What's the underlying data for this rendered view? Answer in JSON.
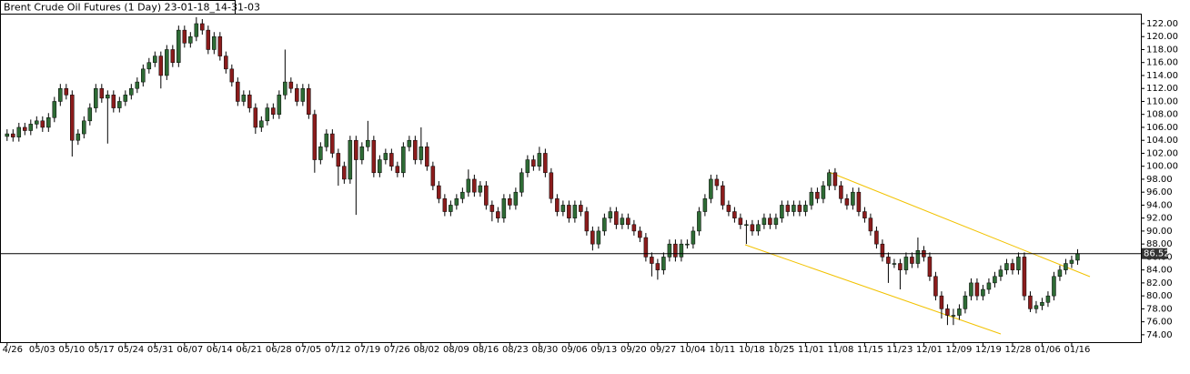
{
  "chart_data": {
    "type": "candlestick",
    "title": "Brent Crude Oil Futures (1 Day) 23-01-18_14-31-03",
    "bull_color": "#2e6b35",
    "bear_color": "#8b1c1c",
    "last_price": 86.52,
    "xlim": [
      -1.2,
      191.7
    ],
    "ylim": [
      73,
      123.5
    ],
    "yticks": [
      {
        "value": 74,
        "label": "74.00"
      },
      {
        "value": 76,
        "label": "76.00"
      },
      {
        "value": 78,
        "label": "78.00"
      },
      {
        "value": 80,
        "label": "80.00"
      },
      {
        "value": 82,
        "label": "82.00"
      },
      {
        "value": 84,
        "label": "84.00"
      },
      {
        "value": 86,
        "label": "86.00"
      },
      {
        "value": 88,
        "label": "88.00"
      },
      {
        "value": 90,
        "label": "90.00"
      },
      {
        "value": 92,
        "label": "92.00"
      },
      {
        "value": 94,
        "label": "94.00"
      },
      {
        "value": 96,
        "label": "96.00"
      },
      {
        "value": 98,
        "label": "98.00"
      },
      {
        "value": 100,
        "label": "100.00"
      },
      {
        "value": 102,
        "label": "102.00"
      },
      {
        "value": 104,
        "label": "104.00"
      },
      {
        "value": 106,
        "label": "106.00"
      },
      {
        "value": 108,
        "label": "108.00"
      },
      {
        "value": 110,
        "label": "110.00"
      },
      {
        "value": 112,
        "label": "112.00"
      },
      {
        "value": 114,
        "label": "114.00"
      },
      {
        "value": 116,
        "label": "116.00"
      },
      {
        "value": 118,
        "label": "118.00"
      },
      {
        "value": 120,
        "label": "120.00"
      },
      {
        "value": 122,
        "label": "122.00"
      }
    ],
    "xticks": [
      {
        "value": 0,
        "label": "4/26"
      },
      {
        "value": 5,
        "label": "05/03"
      },
      {
        "value": 10,
        "label": "05/10"
      },
      {
        "value": 15,
        "label": "05/17"
      },
      {
        "value": 20,
        "label": "05/24"
      },
      {
        "value": 25,
        "label": "05/31"
      },
      {
        "value": 30,
        "label": "06/07"
      },
      {
        "value": 35,
        "label": "06/14"
      },
      {
        "value": 40,
        "label": "06/21"
      },
      {
        "value": 45,
        "label": "06/28"
      },
      {
        "value": 50,
        "label": "07/05"
      },
      {
        "value": 55,
        "label": "07/12"
      },
      {
        "value": 60,
        "label": "07/19"
      },
      {
        "value": 65,
        "label": "07/26"
      },
      {
        "value": 70,
        "label": "08/02"
      },
      {
        "value": 75,
        "label": "08/09"
      },
      {
        "value": 80,
        "label": "08/16"
      },
      {
        "value": 85,
        "label": "08/23"
      },
      {
        "value": 90,
        "label": "08/30"
      },
      {
        "value": 95,
        "label": "09/06"
      },
      {
        "value": 100,
        "label": "09/13"
      },
      {
        "value": 105,
        "label": "09/20"
      },
      {
        "value": 110,
        "label": "09/27"
      },
      {
        "value": 115,
        "label": "10/04"
      },
      {
        "value": 120,
        "label": "10/11"
      },
      {
        "value": 125,
        "label": "10/18"
      },
      {
        "value": 130,
        "label": "10/25"
      },
      {
        "value": 135,
        "label": "11/01"
      },
      {
        "value": 140,
        "label": "11/08"
      },
      {
        "value": 145,
        "label": "11/15"
      },
      {
        "value": 150,
        "label": "11/23"
      },
      {
        "value": 155,
        "label": "12/01"
      },
      {
        "value": 160,
        "label": "12/09"
      },
      {
        "value": 165,
        "label": "12/19"
      },
      {
        "value": 170,
        "label": "12/28"
      },
      {
        "value": 175,
        "label": "01/06"
      },
      {
        "value": 180,
        "label": "01/16"
      }
    ],
    "ohlc": [
      [
        104.6,
        105.7,
        103.9,
        105
      ],
      [
        105,
        105.7,
        103.8,
        104.5
      ],
      [
        104.5,
        106.7,
        103.8,
        106
      ],
      [
        106,
        106.7,
        104.8,
        105.5
      ],
      [
        105.5,
        107.2,
        104.8,
        106.5
      ],
      [
        106.5,
        107.7,
        105.8,
        107
      ],
      [
        107,
        107.7,
        105.3,
        106
      ],
      [
        106,
        108.2,
        105.3,
        107.5
      ],
      [
        107.5,
        110.7,
        106.8,
        110
      ],
      [
        110,
        112.7,
        109.3,
        112
      ],
      [
        112,
        112.7,
        110.3,
        111
      ],
      [
        111,
        111.7,
        101.5,
        104
      ],
      [
        104,
        105.7,
        103.3,
        105
      ],
      [
        105,
        107.7,
        104.3,
        107
      ],
      [
        107,
        109.7,
        106.3,
        109
      ],
      [
        109,
        112.7,
        108.3,
        112
      ],
      [
        112,
        112.7,
        109.8,
        110.5
      ],
      [
        110.5,
        111.7,
        103.5,
        111
      ],
      [
        111,
        111.7,
        108.3,
        109
      ],
      [
        109,
        110.7,
        108.3,
        110
      ],
      [
        110,
        111.7,
        109.3,
        111
      ],
      [
        111,
        112.7,
        110.3,
        112
      ],
      [
        112,
        113.7,
        111.3,
        113
      ],
      [
        113,
        115.7,
        112.3,
        115
      ],
      [
        115,
        116.7,
        114.3,
        116
      ],
      [
        116,
        117.7,
        115.3,
        117
      ],
      [
        117,
        117.7,
        112,
        114
      ],
      [
        114,
        118.7,
        113.3,
        118
      ],
      [
        118,
        118.7,
        115.3,
        116
      ],
      [
        116,
        121.7,
        115.3,
        121
      ],
      [
        121,
        121.7,
        118.3,
        119
      ],
      [
        119,
        120.7,
        118.3,
        120
      ],
      [
        120,
        123,
        119.3,
        122
      ],
      [
        122,
        122.7,
        120.3,
        121
      ],
      [
        121,
        121.7,
        117.3,
        118
      ],
      [
        118,
        120.7,
        117.3,
        120
      ],
      [
        120,
        120.7,
        116.3,
        117
      ],
      [
        117,
        117.7,
        114.3,
        115
      ],
      [
        115,
        115.7,
        112.3,
        113
      ],
      [
        113,
        113.7,
        109.3,
        110
      ],
      [
        110,
        111.7,
        109.3,
        111
      ],
      [
        111,
        111.7,
        108.3,
        109
      ],
      [
        109,
        109.7,
        105,
        106
      ],
      [
        106,
        107.7,
        105.3,
        107
      ],
      [
        107,
        109.7,
        106.3,
        109
      ],
      [
        109,
        109.7,
        107.3,
        108
      ],
      [
        108,
        111.7,
        107.3,
        111
      ],
      [
        111,
        118,
        110.3,
        113
      ],
      [
        113,
        113.7,
        111.3,
        112
      ],
      [
        112,
        112.7,
        109.3,
        110
      ],
      [
        110,
        112.7,
        109.3,
        112
      ],
      [
        112,
        112.7,
        107.3,
        108
      ],
      [
        108,
        108.7,
        99,
        101
      ],
      [
        101,
        103.7,
        100.3,
        103
      ],
      [
        103,
        105.7,
        102.3,
        105
      ],
      [
        105,
        105.7,
        101.3,
        102
      ],
      [
        102,
        102.7,
        97,
        100
      ],
      [
        100,
        100.7,
        97.3,
        98
      ],
      [
        98,
        104.7,
        97.3,
        104
      ],
      [
        104,
        104.7,
        92.5,
        101
      ],
      [
        101,
        103.7,
        100.3,
        103
      ],
      [
        103,
        107,
        102.3,
        104
      ],
      [
        104,
        104.7,
        98.3,
        99
      ],
      [
        99,
        101.7,
        98.3,
        101
      ],
      [
        101,
        102.7,
        100.3,
        102
      ],
      [
        102,
        102.7,
        99.3,
        100
      ],
      [
        100,
        100.7,
        98.3,
        99
      ],
      [
        99,
        103.7,
        98.3,
        103
      ],
      [
        103,
        104.7,
        102.3,
        104
      ],
      [
        104,
        104.7,
        100.3,
        101
      ],
      [
        101,
        106,
        100.3,
        103
      ],
      [
        103,
        103.7,
        99.3,
        100
      ],
      [
        100,
        100.7,
        96.3,
        97
      ],
      [
        97,
        97.7,
        94.3,
        95
      ],
      [
        95,
        95.7,
        92.3,
        93
      ],
      [
        93,
        94.7,
        92.3,
        94
      ],
      [
        94,
        95.7,
        93.3,
        95
      ],
      [
        95,
        96.7,
        94.3,
        96
      ],
      [
        96,
        99.5,
        95.3,
        98
      ],
      [
        98,
        98.7,
        95.3,
        96
      ],
      [
        96,
        97.7,
        95.3,
        97
      ],
      [
        97,
        97.7,
        93.3,
        94
      ],
      [
        94,
        94.7,
        91.5,
        93
      ],
      [
        93,
        93.7,
        91.3,
        92
      ],
      [
        92,
        95.7,
        91.3,
        95
      ],
      [
        95,
        95.7,
        93.3,
        94
      ],
      [
        94,
        96.7,
        93.3,
        96
      ],
      [
        96,
        99.7,
        95.3,
        99
      ],
      [
        99,
        101.7,
        98.3,
        101
      ],
      [
        101,
        101.7,
        99.3,
        100
      ],
      [
        100,
        103,
        99.3,
        102
      ],
      [
        102,
        102.7,
        98.3,
        99
      ],
      [
        99,
        99.7,
        94.3,
        95
      ],
      [
        95,
        95.7,
        92.3,
        93
      ],
      [
        93,
        94.7,
        92.3,
        94
      ],
      [
        94,
        94.7,
        91.3,
        92
      ],
      [
        92,
        94.7,
        91.3,
        94
      ],
      [
        94,
        94.7,
        92.3,
        93
      ],
      [
        93,
        93.7,
        89.3,
        90
      ],
      [
        90,
        90.7,
        87,
        88
      ],
      [
        88,
        90.7,
        87.3,
        90
      ],
      [
        90,
        92.7,
        89.3,
        92
      ],
      [
        92,
        93.7,
        91.3,
        93
      ],
      [
        93,
        93.7,
        90.3,
        91
      ],
      [
        91,
        92.7,
        90.3,
        92
      ],
      [
        92,
        92.7,
        90.3,
        91
      ],
      [
        91,
        91.7,
        89.3,
        90
      ],
      [
        90,
        90.7,
        88.3,
        89
      ],
      [
        89,
        89.7,
        85.3,
        86
      ],
      [
        86,
        86.7,
        83,
        85
      ],
      [
        85,
        85.7,
        82.5,
        84
      ],
      [
        84,
        86.7,
        83.3,
        86
      ],
      [
        86,
        88.7,
        85.3,
        88
      ],
      [
        88,
        88.7,
        85.3,
        86
      ],
      [
        86,
        88.7,
        85.3,
        88
      ],
      [
        88,
        88.7,
        87.3,
        88
      ],
      [
        88,
        90.7,
        87.3,
        90
      ],
      [
        90,
        93.7,
        89.3,
        93
      ],
      [
        93,
        95.7,
        92.3,
        95
      ],
      [
        95,
        98.7,
        94.3,
        98
      ],
      [
        98,
        98.7,
        96.3,
        97
      ],
      [
        97,
        97.7,
        93.3,
        94
      ],
      [
        94,
        94.7,
        92.3,
        93
      ],
      [
        93,
        93.7,
        91.3,
        92
      ],
      [
        92,
        92.7,
        90.3,
        91
      ],
      [
        91,
        91.7,
        88,
        91
      ],
      [
        91,
        91.7,
        89.3,
        90
      ],
      [
        90,
        91.7,
        89.3,
        91
      ],
      [
        91,
        92.7,
        90.3,
        92
      ],
      [
        92,
        92.7,
        90.3,
        91
      ],
      [
        91,
        92.7,
        90.3,
        92
      ],
      [
        92,
        94.7,
        91.3,
        94
      ],
      [
        94,
        94.7,
        92.3,
        93
      ],
      [
        93,
        94.7,
        92.3,
        94
      ],
      [
        94,
        94.7,
        92.3,
        93
      ],
      [
        93,
        94.7,
        92.3,
        94
      ],
      [
        94,
        96.7,
        93.3,
        96
      ],
      [
        96,
        96.7,
        94.3,
        95
      ],
      [
        95,
        97.7,
        94.3,
        97
      ],
      [
        97,
        99.5,
        96.3,
        99
      ],
      [
        99,
        99.7,
        96.3,
        97
      ],
      [
        97,
        97.7,
        94.3,
        95
      ],
      [
        95,
        95.7,
        93.3,
        94
      ],
      [
        94,
        96.7,
        93.3,
        96
      ],
      [
        96,
        96.7,
        92.3,
        93
      ],
      [
        93,
        93.7,
        91.3,
        92
      ],
      [
        92,
        92.7,
        89.3,
        90
      ],
      [
        90,
        90.7,
        87.3,
        88
      ],
      [
        88,
        88.7,
        85.3,
        86
      ],
      [
        86,
        86.7,
        82,
        85
      ],
      [
        85,
        85.7,
        84.3,
        85
      ],
      [
        85,
        85.7,
        81,
        84
      ],
      [
        84,
        86.7,
        83.3,
        86
      ],
      [
        86,
        86.7,
        84.3,
        85
      ],
      [
        85,
        89,
        84.3,
        87
      ],
      [
        87,
        87.7,
        85.3,
        86
      ],
      [
        86,
        86.7,
        82.3,
        83
      ],
      [
        83,
        83.7,
        79.3,
        80
      ],
      [
        80,
        80.7,
        76.5,
        78
      ],
      [
        78,
        78.7,
        75.5,
        77
      ],
      [
        77,
        78,
        75.5,
        77
      ],
      [
        77,
        78.7,
        76.3,
        78
      ],
      [
        78,
        80.7,
        77.3,
        80
      ],
      [
        80,
        82.7,
        79.3,
        82
      ],
      [
        82,
        82.7,
        79.3,
        80
      ],
      [
        80,
        81.7,
        79.3,
        81
      ],
      [
        81,
        82.7,
        80.3,
        82
      ],
      [
        82,
        83.7,
        81.3,
        83
      ],
      [
        83,
        84.7,
        82.3,
        84
      ],
      [
        84,
        85.7,
        83.3,
        85
      ],
      [
        85,
        85.7,
        83.3,
        84
      ],
      [
        84,
        86.7,
        83.3,
        86
      ],
      [
        86,
        86.7,
        79.3,
        80
      ],
      [
        80,
        80.7,
        77.5,
        78
      ],
      [
        78,
        79.2,
        77.3,
        78.5
      ],
      [
        78.5,
        79.7,
        77.8,
        79
      ],
      [
        79,
        80.7,
        78.3,
        80
      ],
      [
        80,
        83.7,
        79.3,
        83
      ],
      [
        83,
        84.7,
        82.3,
        84
      ],
      [
        84,
        85.7,
        83.3,
        85
      ],
      [
        85,
        86.2,
        84.3,
        85.5
      ],
      [
        85.5,
        87.2,
        84.8,
        86.52
      ]
    ]
  }
}
